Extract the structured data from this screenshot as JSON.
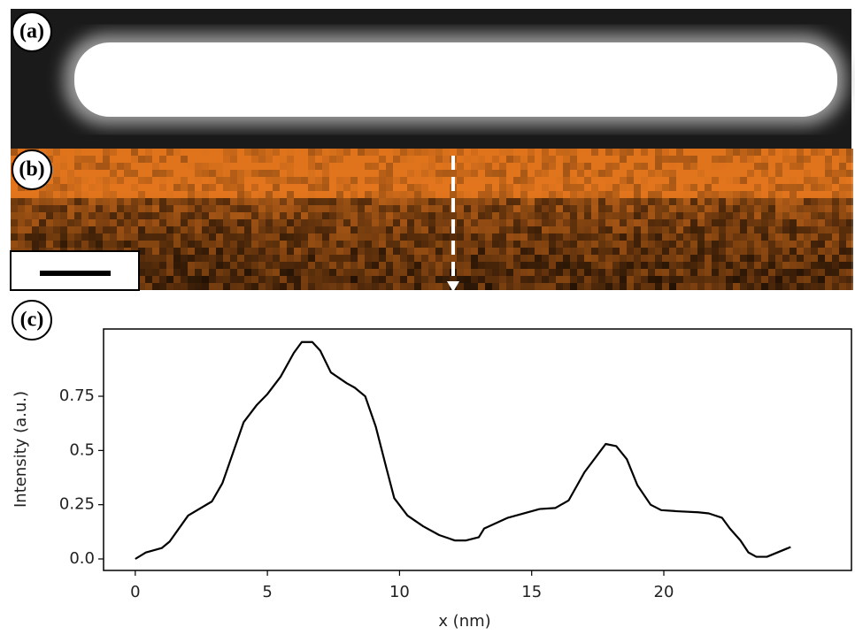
{
  "panel_labels": [
    "(a)",
    "(b)",
    "(c)"
  ],
  "chart_data": {
    "type": "line",
    "xlabel": "x (nm)",
    "ylabel": "Intensity (a.u.)",
    "x": [
      0,
      0.4,
      1.0,
      1.3,
      2.0,
      2.9,
      3.3,
      4.1,
      4.6,
      5.0,
      5.5,
      6.0,
      6.3,
      6.7,
      7.0,
      7.4,
      8.0,
      8.3,
      8.7,
      9.1,
      9.5,
      9.8,
      10.3,
      10.9,
      11.5,
      12.1,
      12.5,
      13.0,
      13.2,
      14.1,
      15.3,
      15.9,
      16.4,
      17.0,
      17.8,
      18.2,
      18.6,
      19.0,
      19.5,
      19.9,
      20.5,
      21.3,
      21.7,
      22.2,
      22.5,
      22.9,
      23.2,
      23.5,
      23.9,
      24.8
    ],
    "series": [
      {
        "color": "#000000",
        "values": [
          0.0,
          0.03,
          0.05,
          0.08,
          0.2,
          0.265,
          0.35,
          0.63,
          0.71,
          0.76,
          0.84,
          0.95,
          1.0,
          1.0,
          0.96,
          0.86,
          0.81,
          0.79,
          0.75,
          0.61,
          0.42,
          0.28,
          0.2,
          0.15,
          0.11,
          0.085,
          0.085,
          0.1,
          0.14,
          0.19,
          0.23,
          0.235,
          0.27,
          0.4,
          0.53,
          0.52,
          0.46,
          0.34,
          0.25,
          0.225,
          0.22,
          0.215,
          0.21,
          0.19,
          0.14,
          0.085,
          0.03,
          0.01,
          0.01,
          0.055
        ]
      }
    ],
    "xlim": [
      -1.2,
      27.1
    ],
    "ylim": [
      -0.053,
      1.06
    ],
    "xticks": [
      0,
      5,
      10,
      15,
      20
    ],
    "yticks": [
      {
        "value": 0,
        "label": "0.0"
      },
      0.25,
      0.5,
      0.75
    ]
  }
}
